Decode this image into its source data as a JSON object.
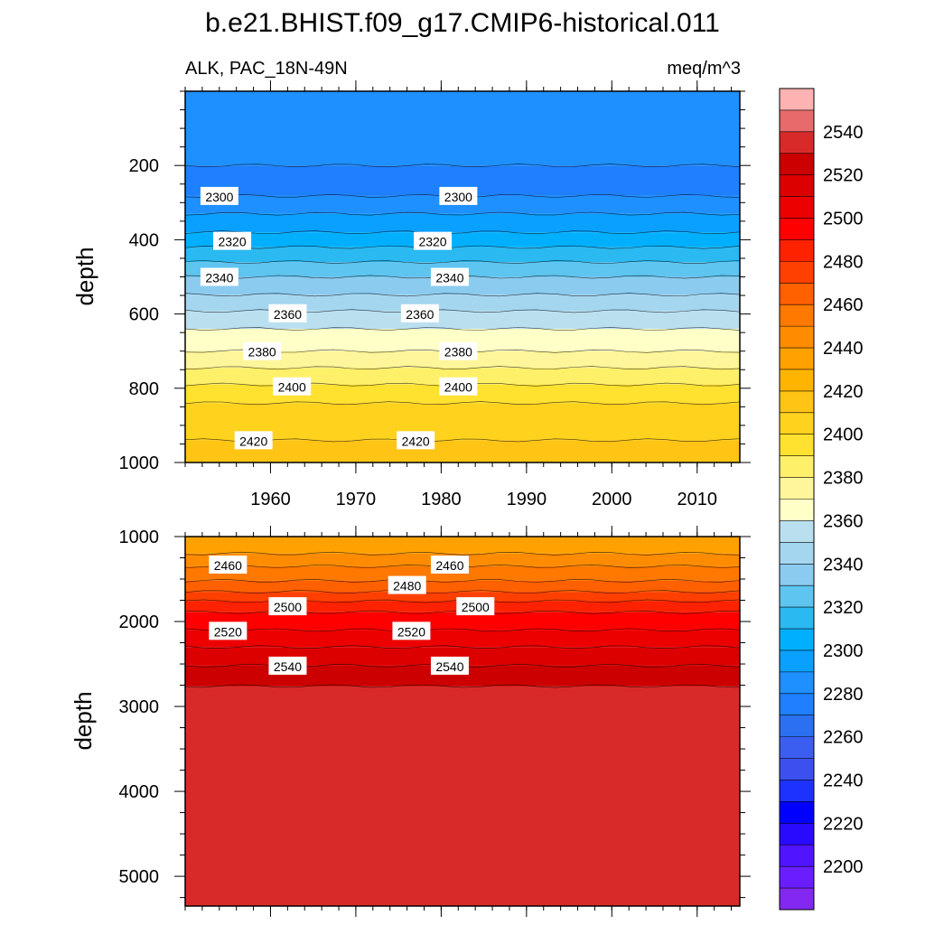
{
  "title": "b.e21.BHIST.f09_g17.CMIP6-historical.011",
  "subtitle_left": "ALK, PAC_18N-49N",
  "subtitle_right": "meq/m^3",
  "chart_data": [
    {
      "type": "contour",
      "panel": "upper",
      "ylabel": "depth",
      "xlim": [
        1950,
        2015
      ],
      "ylim": [
        1000,
        0
      ],
      "x_ticks": [
        1960,
        1970,
        1980,
        1990,
        2000,
        2010
      ],
      "x_tick_labels": [
        "1960",
        "1970",
        "1980",
        "1990",
        "2000",
        "2010"
      ],
      "y_ticks": [
        200,
        400,
        600,
        800,
        1000
      ],
      "y_tick_labels": [
        "200",
        "400",
        "600",
        "800",
        "1000"
      ],
      "contour_levels": [
        2280,
        2290,
        2300,
        2310,
        2320,
        2330,
        2340,
        2350,
        2360,
        2370,
        2380,
        2390,
        2400,
        2410,
        2420,
        2430
      ],
      "level_depths": [
        200,
        282,
        330,
        380,
        420,
        460,
        500,
        548,
        592,
        640,
        700,
        745,
        790,
        840,
        940,
        1000
      ],
      "contour_labels": [
        {
          "text": "2300",
          "x": 1952.0,
          "depth": 282
        },
        {
          "text": "2300",
          "x": 1980.0,
          "depth": 282
        },
        {
          "text": "2320",
          "x": 1953.5,
          "depth": 403
        },
        {
          "text": "2320",
          "x": 1977.0,
          "depth": 403
        },
        {
          "text": "2340",
          "x": 1952.0,
          "depth": 500
        },
        {
          "text": "2340",
          "x": 1979.0,
          "depth": 500
        },
        {
          "text": "2360",
          "x": 1960.0,
          "depth": 598
        },
        {
          "text": "2360",
          "x": 1975.5,
          "depth": 598
        },
        {
          "text": "2380",
          "x": 1957.0,
          "depth": 700
        },
        {
          "text": "2380",
          "x": 1980.0,
          "depth": 700
        },
        {
          "text": "2400",
          "x": 1960.5,
          "depth": 795
        },
        {
          "text": "2400",
          "x": 1980.0,
          "depth": 795
        },
        {
          "text": "2420",
          "x": 1956.0,
          "depth": 940
        },
        {
          "text": "2420",
          "x": 1975.0,
          "depth": 940
        }
      ]
    },
    {
      "type": "contour",
      "panel": "lower",
      "ylabel": "depth",
      "xlim": [
        1950,
        2015
      ],
      "ylim": [
        5350,
        1000
      ],
      "y_ticks": [
        1000,
        2000,
        3000,
        4000,
        5000
      ],
      "y_tick_labels": [
        "1000",
        "2000",
        "3000",
        "4000",
        "5000"
      ],
      "contour_levels": [
        2440,
        2450,
        2460,
        2470,
        2480,
        2490,
        2500,
        2510,
        2520,
        2530,
        2540,
        2550
      ],
      "level_depths": [
        1000,
        1200,
        1350,
        1520,
        1650,
        1760,
        1890,
        2100,
        2300,
        2520,
        2760,
        5350
      ],
      "contour_labels": [
        {
          "text": "2460",
          "x": 1953.0,
          "depth": 1330
        },
        {
          "text": "2460",
          "x": 1979.0,
          "depth": 1330
        },
        {
          "text": "2480",
          "x": 1974.0,
          "depth": 1570
        },
        {
          "text": "2500",
          "x": 1960.0,
          "depth": 1820
        },
        {
          "text": "2500",
          "x": 1982.0,
          "depth": 1820
        },
        {
          "text": "2520",
          "x": 1953.0,
          "depth": 2110
        },
        {
          "text": "2520",
          "x": 1974.5,
          "depth": 2110
        },
        {
          "text": "2540",
          "x": 1960.0,
          "depth": 2520
        },
        {
          "text": "2540",
          "x": 1979.0,
          "depth": 2520
        }
      ]
    }
  ],
  "colorbar": {
    "labels": [
      "2540",
      "2520",
      "2500",
      "2480",
      "2460",
      "2440",
      "2420",
      "2400",
      "2380",
      "2360",
      "2340",
      "2320",
      "2300",
      "2280",
      "2260",
      "2240",
      "2220",
      "2200"
    ],
    "colors": [
      "#ffb2b2",
      "#e86a6a",
      "#d92a2a",
      "#cc0000",
      "#dd0000",
      "#ec0000",
      "#ff0000",
      "#ff2200",
      "#ff4000",
      "#ff6000",
      "#ff7800",
      "#ff8c00",
      "#ffa100",
      "#ffb400",
      "#ffc414",
      "#ffd21e",
      "#ffe12f",
      "#fff06a",
      "#fff59a",
      "#ffffc8",
      "#bae0f0",
      "#a5d6f0",
      "#8bcbf0",
      "#5ec4f0",
      "#2ab9f0",
      "#00b0ff",
      "#0aa0ff",
      "#1e90ff",
      "#1e80ff",
      "#2a70f0",
      "#3c5ef0",
      "#3c50f0",
      "#1e32ff",
      "#0000ff",
      "#2a0aff",
      "#5014ff",
      "#6a1eff",
      "#8228f0"
    ]
  }
}
